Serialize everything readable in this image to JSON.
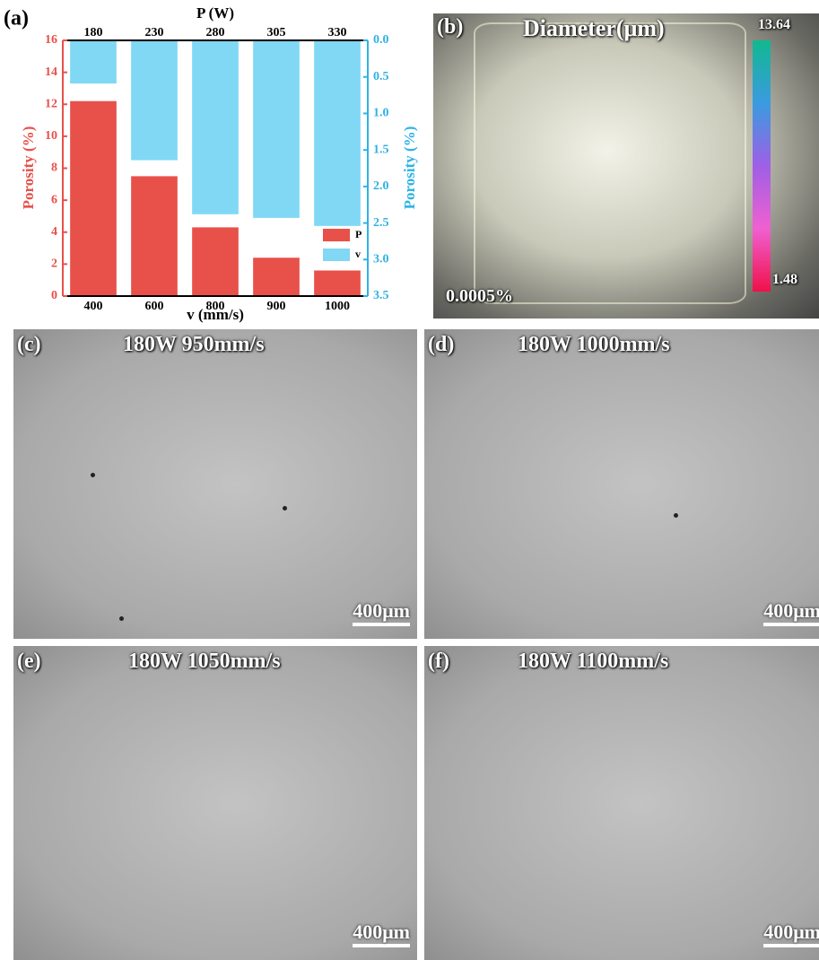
{
  "chart_data": {
    "type": "bar",
    "panel_label": "(a)",
    "x_label": "v (mm/s)",
    "categories": [
      "400",
      "600",
      "800",
      "900",
      "1000"
    ],
    "top_axis": {
      "label": "P (W)",
      "categories": [
        "180",
        "230",
        "280",
        "305",
        "330"
      ]
    },
    "y_label": "Porosity (%)",
    "y2_label": "Porosity (%)",
    "ylim": [
      0,
      16
    ],
    "yticks": [
      0,
      2,
      4,
      6,
      8,
      10,
      12,
      14,
      16
    ],
    "y2lim": [
      0,
      3.5
    ],
    "y2_inverted": true,
    "y2ticks": [
      {
        "value": 0,
        "label": "0.0"
      },
      0.5,
      {
        "value": 1,
        "label": "1.0"
      },
      1.5,
      {
        "value": 2,
        "label": "2.0"
      },
      2.5,
      {
        "value": 3,
        "label": "3.0"
      },
      3.5
    ],
    "y_color": "#e8504a",
    "y2_color": "#2fb3e6",
    "legend": "lower right",
    "series": [
      {
        "name": "P",
        "color": "#e8504a",
        "values": [
          12.2,
          7.5,
          4.3,
          2.4,
          1.6
        ]
      },
      {
        "name": "v",
        "color": "#80d8f4",
        "axis": "y2",
        "values": [
          0.59,
          1.64,
          2.38,
          2.43,
          2.54
        ]
      }
    ]
  },
  "panel_b": {
    "label": "(b)",
    "title": "Diameter(μm)",
    "colorbar_max": 13.64,
    "colorbar_min": 1.48,
    "porosity": "0.0005%"
  },
  "panels": [
    {
      "label": "(c)",
      "title": "180W 950mm/s",
      "scale_bar": "400μm"
    },
    {
      "label": "(d)",
      "title": "180W 1000mm/s",
      "scale_bar": "400μm"
    },
    {
      "label": "(e)",
      "title": "180W 1050mm/s",
      "scale_bar": "400μm"
    },
    {
      "label": "(f)",
      "title": "180W 1100mm/s",
      "scale_bar": "400μm"
    }
  ]
}
